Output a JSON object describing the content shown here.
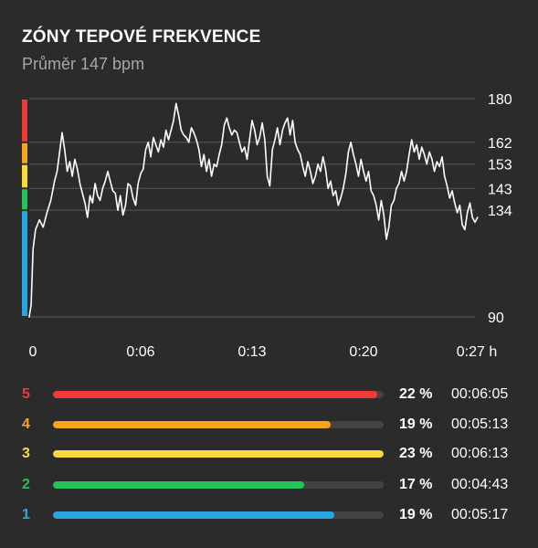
{
  "header": {
    "title": "ZÓNY TEPOVÉ FREKVENCE",
    "subtitle": "Průměr 147 bpm"
  },
  "colors": {
    "background": "#2b2b2b",
    "grid": "#585858",
    "line": "#ffffff",
    "zone5": "#f03a3a",
    "zone4": "#f7a51b",
    "zone3": "#fbd93a",
    "zone2": "#22c45a",
    "zone1": "#28a6e0"
  },
  "chart_data": {
    "type": "line",
    "series": [
      {
        "values": [
          [
            0.0,
            90
          ],
          [
            0.15,
            95
          ],
          [
            0.3,
            118
          ],
          [
            0.5,
            126
          ],
          [
            0.8,
            130
          ],
          [
            1.1,
            127
          ],
          [
            1.4,
            133
          ],
          [
            1.7,
            138
          ],
          [
            2.0,
            146
          ],
          [
            2.2,
            150
          ],
          [
            2.4,
            158
          ],
          [
            2.6,
            166
          ],
          [
            2.8,
            159
          ],
          [
            3.0,
            150
          ],
          [
            3.2,
            154
          ],
          [
            3.4,
            148
          ],
          [
            3.6,
            155
          ],
          [
            3.8,
            151
          ],
          [
            4.0,
            145
          ],
          [
            4.2,
            141
          ],
          [
            4.4,
            137
          ],
          [
            4.6,
            131
          ],
          [
            4.8,
            140
          ],
          [
            5.0,
            137
          ],
          [
            5.2,
            145
          ],
          [
            5.4,
            140
          ],
          [
            5.6,
            138
          ],
          [
            5.8,
            143
          ],
          [
            6.0,
            146
          ],
          [
            6.2,
            150
          ],
          [
            6.4,
            146
          ],
          [
            6.6,
            142
          ],
          [
            6.8,
            141
          ],
          [
            7.0,
            134
          ],
          [
            7.2,
            140
          ],
          [
            7.4,
            132
          ],
          [
            7.6,
            136
          ],
          [
            7.8,
            145
          ],
          [
            8.0,
            144
          ],
          [
            8.2,
            139
          ],
          [
            8.4,
            136
          ],
          [
            8.6,
            145
          ],
          [
            8.8,
            149
          ],
          [
            9.0,
            151
          ],
          [
            9.2,
            159
          ],
          [
            9.4,
            162
          ],
          [
            9.6,
            156
          ],
          [
            9.8,
            164
          ],
          [
            10.0,
            161
          ],
          [
            10.2,
            158
          ],
          [
            10.4,
            163
          ],
          [
            10.6,
            160
          ],
          [
            10.8,
            167
          ],
          [
            11.0,
            163
          ],
          [
            11.2,
            167
          ],
          [
            11.4,
            171
          ],
          [
            11.6,
            178
          ],
          [
            11.8,
            173
          ],
          [
            12.0,
            167
          ],
          [
            12.2,
            165
          ],
          [
            12.4,
            164
          ],
          [
            12.6,
            162
          ],
          [
            12.8,
            168
          ],
          [
            13.0,
            166
          ],
          [
            13.2,
            163
          ],
          [
            13.4,
            159
          ],
          [
            13.6,
            152
          ],
          [
            13.8,
            157
          ],
          [
            14.0,
            150
          ],
          [
            14.2,
            155
          ],
          [
            14.4,
            148
          ],
          [
            14.6,
            153
          ],
          [
            14.8,
            152
          ],
          [
            15.0,
            157
          ],
          [
            15.2,
            161
          ],
          [
            15.4,
            169
          ],
          [
            15.6,
            172
          ],
          [
            15.8,
            168
          ],
          [
            16.0,
            165
          ],
          [
            16.2,
            167
          ],
          [
            16.4,
            166
          ],
          [
            16.6,
            162
          ],
          [
            16.8,
            158
          ],
          [
            17.0,
            160
          ],
          [
            17.2,
            155
          ],
          [
            17.4,
            163
          ],
          [
            17.6,
            171
          ],
          [
            17.8,
            167
          ],
          [
            18.0,
            161
          ],
          [
            18.2,
            164
          ],
          [
            18.4,
            170
          ],
          [
            18.6,
            163
          ],
          [
            18.8,
            148
          ],
          [
            19.0,
            144
          ],
          [
            19.2,
            159
          ],
          [
            19.4,
            163
          ],
          [
            19.6,
            168
          ],
          [
            19.8,
            161
          ],
          [
            20.0,
            167
          ],
          [
            20.2,
            170
          ],
          [
            20.4,
            172
          ],
          [
            20.6,
            165
          ],
          [
            20.8,
            171
          ],
          [
            21.0,
            162
          ],
          [
            21.2,
            159
          ],
          [
            21.4,
            157
          ],
          [
            21.6,
            152
          ],
          [
            21.8,
            148
          ],
          [
            22.0,
            154
          ],
          [
            22.2,
            150
          ],
          [
            22.4,
            145
          ],
          [
            22.6,
            148
          ],
          [
            22.8,
            153
          ],
          [
            23.0,
            150
          ],
          [
            23.2,
            156
          ],
          [
            23.4,
            151
          ],
          [
            23.6,
            143
          ],
          [
            23.8,
            146
          ],
          [
            24.0,
            140
          ],
          [
            24.2,
            142
          ],
          [
            24.4,
            136
          ],
          [
            24.6,
            139
          ],
          [
            24.8,
            143
          ],
          [
            25.0,
            149
          ],
          [
            25.2,
            158
          ],
          [
            25.4,
            162
          ],
          [
            25.6,
            157
          ],
          [
            25.8,
            153
          ],
          [
            26.0,
            148
          ],
          [
            26.2,
            155
          ],
          [
            26.4,
            150
          ],
          [
            26.6,
            146
          ],
          [
            26.8,
            150
          ],
          [
            27.0,
            142
          ],
          [
            27.2,
            140
          ],
          [
            27.4,
            136
          ],
          [
            27.6,
            130
          ],
          [
            27.8,
            138
          ],
          [
            28.0,
            132
          ],
          [
            28.2,
            122
          ],
          [
            28.4,
            127
          ],
          [
            28.6,
            136
          ],
          [
            28.8,
            138
          ],
          [
            29.0,
            143
          ],
          [
            29.2,
            145
          ],
          [
            29.4,
            150
          ],
          [
            29.6,
            146
          ],
          [
            29.8,
            150
          ],
          [
            30.0,
            157
          ],
          [
            30.2,
            163
          ],
          [
            30.4,
            158
          ],
          [
            30.6,
            161
          ],
          [
            30.8,
            155
          ],
          [
            31.0,
            160
          ],
          [
            31.2,
            157
          ],
          [
            31.4,
            153
          ],
          [
            31.6,
            158
          ],
          [
            31.8,
            155
          ],
          [
            32.0,
            150
          ],
          [
            32.2,
            154
          ],
          [
            32.4,
            152
          ],
          [
            32.6,
            156
          ],
          [
            32.8,
            148
          ],
          [
            33.0,
            144
          ],
          [
            33.2,
            139
          ],
          [
            33.4,
            142
          ],
          [
            33.6,
            137
          ],
          [
            33.8,
            133
          ],
          [
            34.0,
            136
          ],
          [
            34.2,
            128
          ],
          [
            34.4,
            126
          ],
          [
            34.6,
            133
          ],
          [
            34.8,
            137
          ],
          [
            35.0,
            131
          ],
          [
            35.2,
            129
          ],
          [
            35.4,
            131
          ]
        ]
      }
    ],
    "y_ticks": [
      90,
      134,
      143,
      153,
      162,
      180
    ],
    "y_tick_labels": [
      "90",
      "134",
      "143",
      "153",
      "162",
      "180"
    ],
    "ylim": [
      90,
      180
    ],
    "x_ticks": [
      0,
      8.8,
      17.6,
      26.4,
      35.2
    ],
    "x_tick_labels": [
      "0",
      "0:06",
      "0:13",
      "0:20",
      "0:27 h"
    ],
    "xlim": [
      0,
      35.2
    ],
    "grid": true,
    "zone_bands": [
      {
        "zone": "1",
        "from": 90,
        "to": 134,
        "color": "#28a6e0"
      },
      {
        "zone": "2",
        "from": 134,
        "to": 143,
        "color": "#22c45a"
      },
      {
        "zone": "3",
        "from": 143,
        "to": 153,
        "color": "#fbd93a"
      },
      {
        "zone": "4",
        "from": 153,
        "to": 162,
        "color": "#f7a51b"
      },
      {
        "zone": "5",
        "from": 162,
        "to": 180,
        "color": "#f03a3a"
      }
    ]
  },
  "zones": [
    {
      "number": "5",
      "color": "#f03a3a",
      "fill_fraction": 0.98,
      "percent": "22 %",
      "time": "00:06:05"
    },
    {
      "number": "4",
      "color": "#f7a51b",
      "fill_fraction": 0.84,
      "percent": "19 %",
      "time": "00:05:13"
    },
    {
      "number": "3",
      "color": "#fbd93a",
      "fill_fraction": 1.0,
      "percent": "23 %",
      "time": "00:06:13"
    },
    {
      "number": "2",
      "color": "#22c45a",
      "fill_fraction": 0.76,
      "percent": "17 %",
      "time": "00:04:43"
    },
    {
      "number": "1",
      "color": "#28a6e0",
      "fill_fraction": 0.85,
      "percent": "19 %",
      "time": "00:05:17"
    }
  ]
}
